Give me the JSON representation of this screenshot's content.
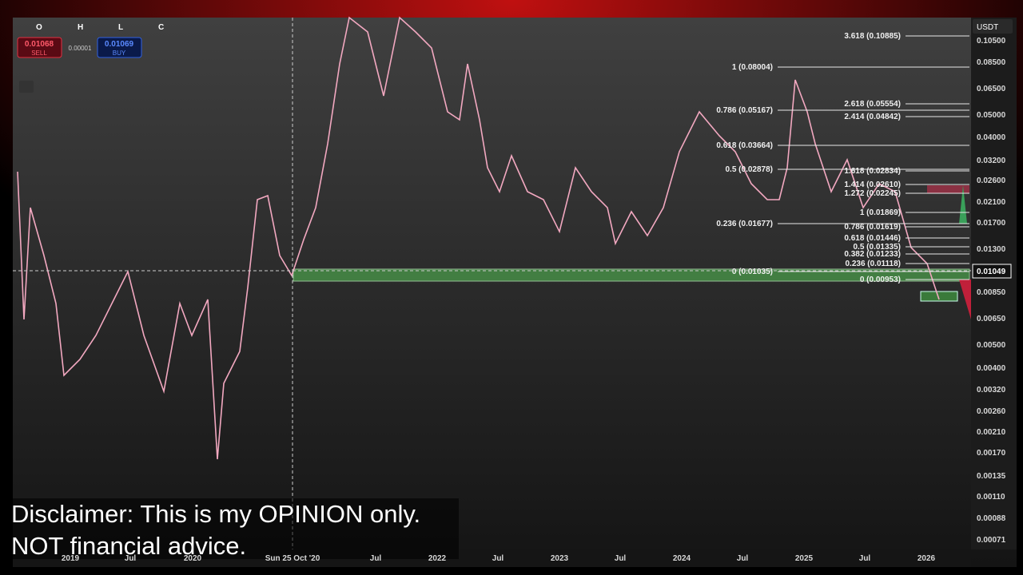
{
  "header": {
    "ohlc": [
      "O",
      "H",
      "L",
      "C"
    ]
  },
  "order_panel": {
    "sell_price": "0.01068",
    "sell_label": "SELL",
    "spread": "0.00001",
    "buy_price": "0.01069",
    "buy_label": "BUY"
  },
  "currency": "USDT",
  "last_price": "0.01049",
  "price_axis": [
    "0.10500",
    "0.08500",
    "0.06500",
    "0.05000",
    "0.04000",
    "0.03200",
    "0.02600",
    "0.02100",
    "0.01700",
    "0.01300",
    "0.00850",
    "0.00650",
    "0.00500",
    "0.00400",
    "0.00320",
    "0.00260",
    "0.00210",
    "0.00170",
    "0.00135",
    "0.00110",
    "0.00088",
    "0.00071"
  ],
  "time_axis": [
    "2019",
    "Jul",
    "2020",
    "Sun 25 Oct '20",
    "Jul",
    "2022",
    "Jul",
    "2023",
    "Jul",
    "2024",
    "Jul",
    "2025",
    "Jul",
    "2026"
  ],
  "fib_levels": [
    "3.618 (0.10885)",
    "1 (0.08004)",
    "2.618 (0.05554)",
    "0.786 (0.05167)",
    "2.414 (0.04842)",
    "0.618 (0.03664)",
    "0.5 (0.02878)",
    "1.618 (0.02834)",
    "1.414 (0.02610)",
    "1.272 (0.02245)",
    "1 (0.01869)",
    "0.236 (0.01677)",
    "0.786 (0.01619)",
    "0.618 (0.01446)",
    "0.5 (0.01335)",
    "0.382 (0.01233)",
    "0.236 (0.01118)",
    "0 (0.01035)",
    "0 (0.00953)"
  ],
  "disclaimer": [
    "Disclaimer: This is my OPINION only.",
    "NOT financial advice."
  ]
}
